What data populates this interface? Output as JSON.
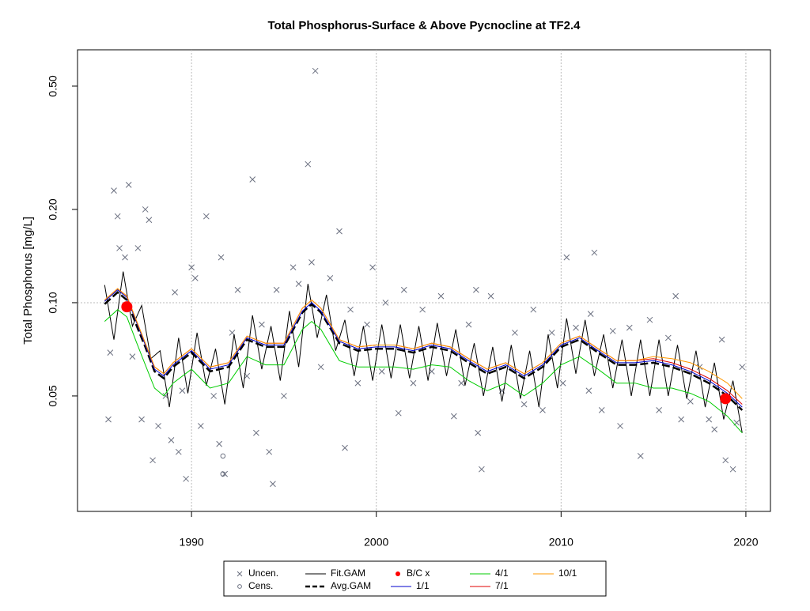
{
  "chart_data": {
    "type": "line",
    "title": "Total Phosphorus-Surface & Above Pycnocline at TF2.4",
    "y_label": "Total Phosphorus [mg/L]",
    "xlim": [
      1983.83,
      2021.33
    ],
    "ylim": [
      0.0212,
      0.655
    ],
    "log_y": true,
    "xticks": [
      1990,
      2000,
      2010,
      2020
    ],
    "yticks": [
      0.05,
      {
        "value": 0.1,
        "label": "0.10"
      },
      {
        "value": 0.2,
        "label": "0.20"
      },
      {
        "value": 0.5,
        "label": "0.50"
      }
    ],
    "grid": true,
    "ref_line_y": 0.1,
    "series": [
      {
        "name": "Uncen.",
        "type": "scatter",
        "marker": "x",
        "color": "#6b7080",
        "x": [
          1985.5,
          1985.6,
          1985.8,
          1986,
          1986.1,
          1986.4,
          1986.6,
          1986.8,
          1987.1,
          1987.3,
          1987.5,
          1987.7,
          1987.9,
          1988.2,
          1988.6,
          1988.9,
          1989.1,
          1989.3,
          1989.5,
          1989.7,
          1990,
          1990.2,
          1990.5,
          1990.8,
          1991.2,
          1991.5,
          1991.6,
          1991.8,
          1992.2,
          1992.5,
          1993,
          1993.3,
          1993.5,
          1993.8,
          1994.2,
          1994.4,
          1994.6,
          1995,
          1995.5,
          1995.8,
          1996.3,
          1996.7,
          1996.5,
          1997,
          1997.5,
          1998,
          1998.3,
          1998.6,
          1999,
          1999.5,
          1999.8,
          2000.3,
          2000.5,
          2001.2,
          2001.5,
          2002,
          2002.5,
          2003,
          2003.5,
          2004.2,
          2004.6,
          2005,
          2005.4,
          2005.5,
          2005.7,
          2006.2,
          2006.8,
          2007.5,
          2008,
          2008.5,
          2009,
          2009.5,
          2010.1,
          2010.3,
          2010.8,
          2011.5,
          2011.8,
          2011.6,
          2012.2,
          2012.8,
          2013.2,
          2013.7,
          2014.3,
          2014.8,
          2015.3,
          2015.8,
          2016.2,
          2016.5,
          2017,
          2017.5,
          2018,
          2018.3,
          2018.7,
          2018.9,
          2019.3,
          2019.5,
          2019.8
        ],
        "values": [
          0.042,
          0.069,
          0.23,
          0.19,
          0.15,
          0.14,
          0.24,
          0.067,
          0.15,
          0.042,
          0.2,
          0.185,
          0.031,
          0.04,
          0.05,
          0.036,
          0.108,
          0.033,
          0.052,
          0.027,
          0.13,
          0.12,
          0.04,
          0.19,
          0.05,
          0.035,
          0.14,
          0.028,
          0.08,
          0.11,
          0.058,
          0.25,
          0.038,
          0.085,
          0.033,
          0.026,
          0.11,
          0.05,
          0.13,
          0.115,
          0.28,
          0.56,
          0.135,
          0.062,
          0.12,
          0.17,
          0.034,
          0.095,
          0.055,
          0.085,
          0.13,
          0.06,
          0.1,
          0.044,
          0.11,
          0.055,
          0.095,
          0.06,
          0.105,
          0.043,
          0.055,
          0.085,
          0.11,
          0.038,
          0.029,
          0.105,
          0.052,
          0.08,
          0.047,
          0.095,
          0.045,
          0.08,
          0.055,
          0.14,
          0.083,
          0.052,
          0.145,
          0.092,
          0.045,
          0.081,
          0.04,
          0.083,
          0.032,
          0.088,
          0.045,
          0.077,
          0.105,
          0.042,
          0.048,
          0.062,
          0.042,
          0.039,
          0.076,
          0.031,
          0.029,
          0.041,
          0.062
        ]
      },
      {
        "name": "Cens.",
        "type": "scatter",
        "marker": "o",
        "color": "#6b7080",
        "x": [
          1991.7,
          1991.7
        ],
        "values": [
          0.032,
          0.028
        ]
      },
      {
        "name": "Fit.GAM",
        "type": "line",
        "color": "#000000",
        "width": 1,
        "x": [
          1985.3,
          1985.8,
          1986.3,
          1986.8,
          1987.3,
          1987.8,
          1988.3,
          1988.8,
          1989.3,
          1989.8,
          1990.3,
          1990.8,
          1991.3,
          1991.8,
          1992.3,
          1992.8,
          1993.3,
          1993.8,
          1994.3,
          1994.8,
          1995.3,
          1995.8,
          1996.3,
          1996.8,
          1997.3,
          1997.8,
          1998.3,
          1998.8,
          1999.3,
          1999.8,
          2000.3,
          2000.8,
          2001.3,
          2001.8,
          2002.3,
          2002.8,
          2003.3,
          2003.8,
          2004.3,
          2004.8,
          2005.3,
          2005.8,
          2006.3,
          2006.8,
          2007.3,
          2007.8,
          2008.3,
          2008.8,
          2009.3,
          2009.8,
          2010.3,
          2010.8,
          2011.3,
          2011.8,
          2012.3,
          2012.8,
          2013.3,
          2013.8,
          2014.3,
          2014.8,
          2015.3,
          2015.8,
          2016.3,
          2016.8,
          2017.3,
          2017.8,
          2018.3,
          2018.8,
          2019.3,
          2019.8
        ],
        "values": [
          0.114,
          0.076,
          0.126,
          0.084,
          0.098,
          0.066,
          0.07,
          0.046,
          0.077,
          0.051,
          0.08,
          0.054,
          0.071,
          0.047,
          0.079,
          0.053,
          0.091,
          0.061,
          0.084,
          0.056,
          0.094,
          0.062,
          0.115,
          0.077,
          0.106,
          0.07,
          0.088,
          0.058,
          0.084,
          0.056,
          0.085,
          0.057,
          0.085,
          0.057,
          0.084,
          0.056,
          0.086,
          0.058,
          0.082,
          0.054,
          0.074,
          0.05,
          0.072,
          0.048,
          0.073,
          0.049,
          0.07,
          0.046,
          0.079,
          0.053,
          0.089,
          0.059,
          0.088,
          0.058,
          0.079,
          0.053,
          0.076,
          0.05,
          0.076,
          0.05,
          0.076,
          0.05,
          0.073,
          0.049,
          0.07,
          0.046,
          0.064,
          0.042,
          0.056,
          0.038
        ]
      },
      {
        "name": "Avg.GAM",
        "type": "line",
        "color": "#000000",
        "width": 2.5,
        "dash": "10 4",
        "x": [
          1985.3,
          1986,
          1986.5,
          1987,
          1987.5,
          1988,
          1988.5,
          1989,
          1990,
          1991,
          1992,
          1993,
          1994,
          1995,
          1996,
          1996.5,
          1997,
          1998,
          1999,
          2000,
          2001,
          2002,
          2003,
          2004,
          2005,
          2006,
          2007,
          2008,
          2009,
          2010,
          2011,
          2012,
          2013,
          2014,
          2015,
          2016,
          2017,
          2018,
          2019,
          2019.8
        ],
        "values": [
          0.099,
          0.108,
          0.102,
          0.085,
          0.072,
          0.06,
          0.057,
          0.062,
          0.069,
          0.06,
          0.062,
          0.076,
          0.072,
          0.072,
          0.093,
          0.099,
          0.093,
          0.074,
          0.07,
          0.071,
          0.071,
          0.069,
          0.072,
          0.07,
          0.064,
          0.059,
          0.062,
          0.057,
          0.062,
          0.072,
          0.076,
          0.069,
          0.063,
          0.063,
          0.064,
          0.062,
          0.059,
          0.055,
          0.05,
          0.045
        ]
      },
      {
        "name": "B/C x",
        "type": "scatter",
        "marker": "dot",
        "color": "#ff0000",
        "x": [
          1986.5,
          2018.9
        ],
        "values": [
          0.097,
          0.049
        ]
      },
      {
        "name": "1/1",
        "type": "line",
        "color": "#0000cd",
        "width": 1,
        "x": [
          1985.3,
          1986,
          1986.5,
          1987,
          1987.5,
          1988,
          1988.5,
          1989,
          1990,
          1991,
          1992,
          1993,
          1994,
          1995,
          1996,
          1996.5,
          1997,
          1998,
          1999,
          2000,
          2001,
          2002,
          2003,
          2004,
          2005,
          2006,
          2007,
          2008,
          2009,
          2010,
          2011,
          2012,
          2013,
          2014,
          2015,
          2016,
          2017,
          2018,
          2019,
          2019.8
        ],
        "values": [
          0.101,
          0.11,
          0.104,
          0.087,
          0.073,
          0.061,
          0.058,
          0.063,
          0.07,
          0.061,
          0.063,
          0.077,
          0.073,
          0.073,
          0.094,
          0.1,
          0.094,
          0.075,
          0.071,
          0.072,
          0.072,
          0.07,
          0.073,
          0.071,
          0.065,
          0.06,
          0.063,
          0.058,
          0.063,
          0.073,
          0.077,
          0.07,
          0.064,
          0.064,
          0.065,
          0.063,
          0.06,
          0.056,
          0.051,
          0.046
        ]
      },
      {
        "name": "4/1",
        "type": "line",
        "color": "#00cd00",
        "width": 1,
        "x": [
          1985.3,
          1986,
          1986.5,
          1987,
          1987.5,
          1988,
          1988.5,
          1989,
          1990,
          1991,
          1992,
          1993,
          1994,
          1995,
          1996,
          1996.5,
          1997,
          1998,
          1999,
          2000,
          2001,
          2002,
          2003,
          2004,
          2005,
          2006,
          2007,
          2008,
          2009,
          2010,
          2011,
          2012,
          2013,
          2014,
          2015,
          2016,
          2017,
          2018,
          2019,
          2019.8
        ],
        "values": [
          0.087,
          0.095,
          0.09,
          0.075,
          0.063,
          0.053,
          0.05,
          0.055,
          0.061,
          0.053,
          0.055,
          0.067,
          0.063,
          0.063,
          0.082,
          0.087,
          0.082,
          0.065,
          0.062,
          0.062,
          0.062,
          0.061,
          0.063,
          0.062,
          0.056,
          0.052,
          0.055,
          0.05,
          0.055,
          0.063,
          0.067,
          0.061,
          0.055,
          0.055,
          0.053,
          0.053,
          0.051,
          0.048,
          0.043,
          0.038
        ]
      },
      {
        "name": "7/1",
        "type": "line",
        "color": "#e00000",
        "width": 1,
        "x": [
          1985.3,
          1986,
          1986.5,
          1987,
          1987.5,
          1988,
          1988.5,
          1989,
          1990,
          1991,
          1992,
          1993,
          1994,
          1995,
          1996,
          1996.5,
          1997,
          1998,
          1999,
          2000,
          2001,
          2002,
          2003,
          2004,
          2005,
          2006,
          2007,
          2008,
          2009,
          2010,
          2011,
          2012,
          2013,
          2014,
          2015,
          2016,
          2017,
          2018,
          2019,
          2019.8
        ],
        "values": [
          0.102,
          0.111,
          0.105,
          0.088,
          0.074,
          0.062,
          0.059,
          0.064,
          0.071,
          0.062,
          0.064,
          0.078,
          0.074,
          0.074,
          0.096,
          0.102,
          0.096,
          0.076,
          0.072,
          0.073,
          0.073,
          0.071,
          0.074,
          0.072,
          0.066,
          0.061,
          0.064,
          0.059,
          0.064,
          0.074,
          0.078,
          0.071,
          0.065,
          0.065,
          0.066,
          0.064,
          0.061,
          0.057,
          0.052,
          0.047
        ]
      },
      {
        "name": "10/1",
        "type": "line",
        "color": "#ff9900",
        "width": 1,
        "x": [
          1985.3,
          1986,
          1986.5,
          1987,
          1987.5,
          1988,
          1988.5,
          1989,
          1990,
          1991,
          1992,
          1993,
          1994,
          1995,
          1996,
          1996.5,
          1997,
          1998,
          1999,
          2000,
          2001,
          2002,
          2003,
          2004,
          2005,
          2006,
          2007,
          2008,
          2009,
          2010,
          2011,
          2012,
          2013,
          2014,
          2015,
          2016,
          2017,
          2018,
          2019,
          2019.8
        ],
        "values": [
          0.102,
          0.111,
          0.105,
          0.088,
          0.074,
          0.062,
          0.059,
          0.064,
          0.071,
          0.062,
          0.064,
          0.078,
          0.074,
          0.074,
          0.096,
          0.102,
          0.096,
          0.076,
          0.072,
          0.073,
          0.073,
          0.071,
          0.074,
          0.072,
          0.066,
          0.061,
          0.064,
          0.059,
          0.064,
          0.074,
          0.078,
          0.071,
          0.065,
          0.065,
          0.067,
          0.066,
          0.064,
          0.06,
          0.055,
          0.049
        ]
      }
    ]
  }
}
